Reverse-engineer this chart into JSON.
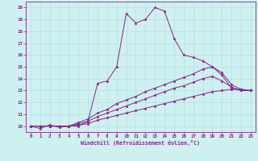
{
  "xlabel": "Windchill (Refroidissement éolien,°C)",
  "background_color": "#cff0f0",
  "line_color": "#882288",
  "series1_y": [
    10.0,
    9.8,
    10.1,
    9.9,
    10.0,
    10.0,
    10.4,
    13.6,
    13.8,
    15.0,
    19.5,
    18.7,
    19.0,
    20.0,
    19.7,
    17.4,
    16.0,
    15.8,
    15.5,
    15.0,
    14.3,
    13.2,
    13.0,
    13.0
  ],
  "series2_y": [
    10.0,
    10.0,
    10.0,
    10.0,
    10.0,
    10.3,
    10.6,
    11.1,
    11.4,
    11.9,
    12.2,
    12.5,
    12.9,
    13.2,
    13.5,
    13.8,
    14.1,
    14.4,
    14.8,
    15.0,
    14.5,
    13.5,
    13.1,
    13.0
  ],
  "series3_y": [
    10.0,
    10.0,
    10.0,
    10.0,
    10.0,
    10.2,
    10.4,
    10.8,
    11.1,
    11.4,
    11.7,
    12.0,
    12.3,
    12.6,
    12.9,
    13.2,
    13.4,
    13.7,
    14.0,
    14.2,
    13.8,
    13.3,
    13.0,
    13.0
  ],
  "series4_y": [
    10.0,
    10.0,
    10.0,
    10.0,
    10.0,
    10.1,
    10.2,
    10.5,
    10.7,
    10.9,
    11.1,
    11.3,
    11.5,
    11.7,
    11.9,
    12.1,
    12.3,
    12.5,
    12.7,
    12.9,
    13.0,
    13.1,
    13.1,
    13.0
  ],
  "ylim": [
    9.5,
    20.5
  ],
  "xlim": [
    -0.5,
    23.5
  ],
  "yticks": [
    10,
    11,
    12,
    13,
    14,
    15,
    16,
    17,
    18,
    19,
    20
  ],
  "xticks": [
    0,
    1,
    2,
    3,
    4,
    5,
    6,
    7,
    8,
    9,
    10,
    11,
    12,
    13,
    14,
    15,
    16,
    17,
    18,
    19,
    20,
    21,
    22,
    23
  ],
  "grid_color": "#aadddd",
  "marker_size": 2.5,
  "line_width": 0.7,
  "tick_labelsize": 4.2,
  "xlabel_fontsize": 4.8
}
